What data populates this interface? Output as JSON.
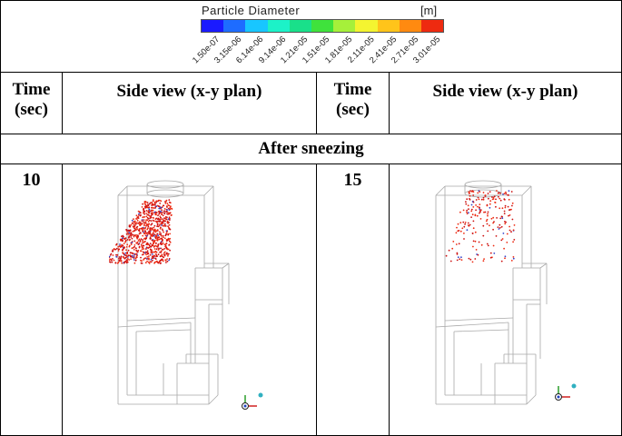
{
  "legend": {
    "title": "Particle Diameter",
    "unit": "[m]",
    "colors": [
      "#1a1aff",
      "#1e6cff",
      "#18c6ff",
      "#1cf2c8",
      "#19e08a",
      "#3fe23c",
      "#a6f03a",
      "#f4f430",
      "#ffc41a",
      "#ff8a10",
      "#ee2a10"
    ],
    "ticks": [
      "1.50e-07",
      "3.15e-06",
      "6.14e-06",
      "9.14e-06",
      "1.21e-05",
      "1.51e-05",
      "1.81e-05",
      "2.11e-05",
      "2.41e-05",
      "2.71e-05",
      "3.01e-05"
    ]
  },
  "header": {
    "time_col": "Time\n(sec)",
    "view_col": "Side view (x-y plan)"
  },
  "section_title": "After sneezing",
  "rows": [
    {
      "time": "10",
      "view": "sim-view-10s"
    },
    {
      "time": "15",
      "view": "sim-view-15s"
    }
  ]
}
